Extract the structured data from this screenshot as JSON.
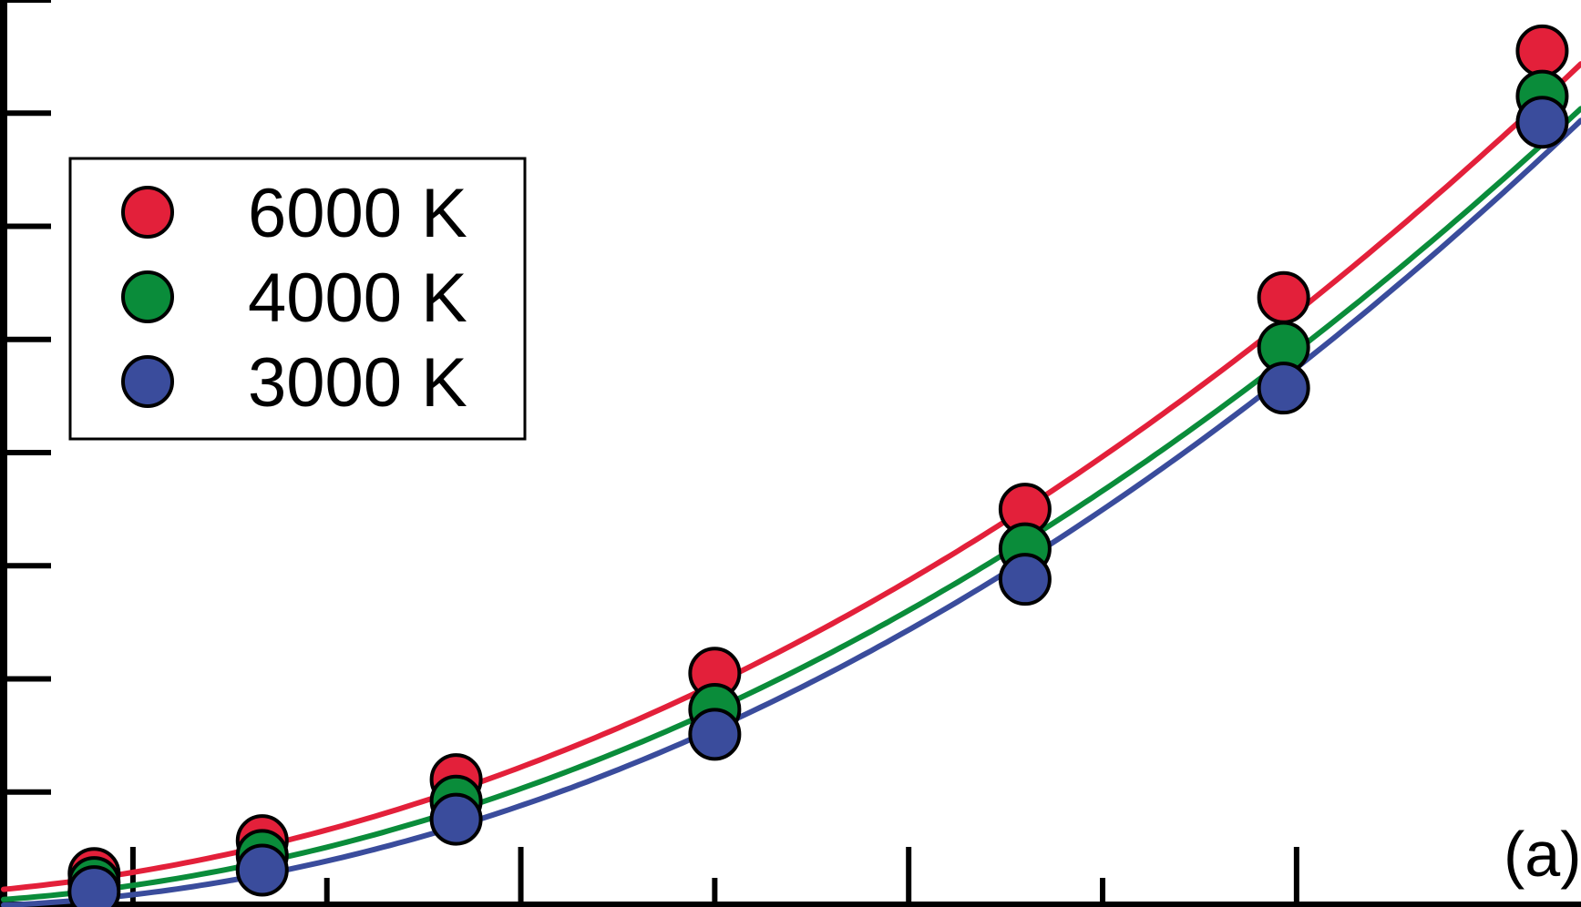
{
  "chart_data": {
    "type": "scatter",
    "panel_label": "(a)",
    "x_range": [
      0,
      6.1
    ],
    "y_range": [
      0,
      8
    ],
    "x_ticks_major": [
      0.5,
      2,
      3.5,
      5
    ],
    "x_ticks_minor": [
      1.25,
      2.75,
      4.25
    ],
    "y_ticks": [
      0,
      1,
      2,
      3,
      4,
      5,
      6,
      7,
      8
    ],
    "legend_position": "upper-left",
    "series": [
      {
        "name": "6000 K",
        "color": "#e3203a",
        "x": [
          0.35,
          1.0,
          1.75,
          2.75,
          3.95,
          4.95,
          5.95
        ],
        "y": [
          0.28,
          0.57,
          1.11,
          2.05,
          3.5,
          5.37,
          7.55
        ]
      },
      {
        "name": "4000 K",
        "color": "#0a8c3a",
        "x": [
          0.35,
          1.0,
          1.75,
          2.75,
          3.95,
          4.95,
          5.95
        ],
        "y": [
          0.2,
          0.44,
          0.92,
          1.73,
          3.15,
          4.93,
          7.15
        ]
      },
      {
        "name": "3000 K",
        "color": "#3a4c9c",
        "x": [
          0.35,
          1.0,
          1.75,
          2.75,
          3.95,
          4.95,
          5.95
        ],
        "y": [
          0.12,
          0.31,
          0.76,
          1.51,
          2.88,
          4.57,
          6.92
        ]
      }
    ],
    "fits": [
      {
        "name": "6000 K",
        "coeffs": [
          0.14,
          0.22,
          0.16
        ]
      },
      {
        "name": "4000 K",
        "coeffs": [
          0.05,
          0.17,
          0.16
        ]
      },
      {
        "name": "3000 K",
        "coeffs": [
          0.0,
          0.1,
          0.17
        ]
      }
    ]
  }
}
